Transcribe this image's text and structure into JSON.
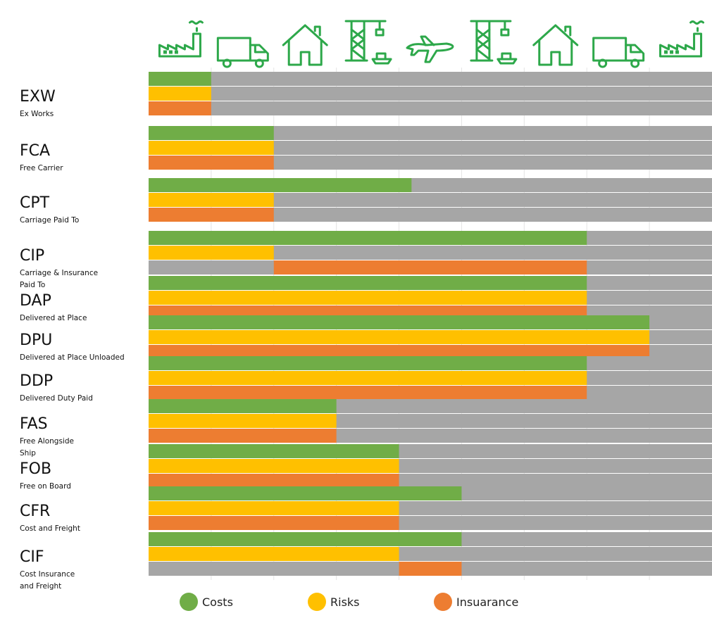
{
  "chart_data": {
    "type": "bar",
    "orientation": "horizontal",
    "stages": [
      "factory-icon",
      "truck-icon",
      "house-icon",
      "port-crane-icon",
      "airplane-icon",
      "port-crane-icon",
      "house-icon",
      "truck-icon",
      "factory-icon"
    ],
    "xlim": [
      0,
      9
    ],
    "categories": [
      {
        "code": "EXW",
        "name": "Ex Works"
      },
      {
        "code": "FCA",
        "name": "Free Carrier"
      },
      {
        "code": "CPT",
        "name": "Carriage Paid To"
      },
      {
        "code": "CIP",
        "name": "Carriage & Insurance Paid To",
        "name_lines": [
          "Carriage & Insurance",
          "Paid To"
        ]
      },
      {
        "code": "DAP",
        "name": "Delivered at Place"
      },
      {
        "code": "DPU",
        "name": "Delivered at Place Unloaded"
      },
      {
        "code": "DDP",
        "name": "Delivered Duty Paid"
      },
      {
        "code": "FAS",
        "name": "Free Alongside Ship",
        "name_lines": [
          "Free Alongside",
          "Ship"
        ]
      },
      {
        "code": "FOB",
        "name": "Free on Board"
      },
      {
        "code": "CFR",
        "name": "Cost and Freight"
      },
      {
        "code": "CIF",
        "name": "Cost Insurance and Freight",
        "name_lines": [
          "Cost Insurance",
          "and Freight"
        ]
      }
    ],
    "series": [
      {
        "name": "Costs",
        "color": "#70ad47",
        "ranges": [
          [
            0,
            1
          ],
          [
            0,
            2
          ],
          [
            0,
            4.2
          ],
          [
            0,
            7
          ],
          [
            0,
            7
          ],
          [
            0,
            8
          ],
          [
            0,
            7
          ],
          [
            0,
            3
          ],
          [
            0,
            4
          ],
          [
            0,
            5
          ],
          [
            0,
            5
          ]
        ]
      },
      {
        "name": "Risks",
        "color": "#ffc000",
        "ranges": [
          [
            0,
            1
          ],
          [
            0,
            2
          ],
          [
            0,
            2
          ],
          [
            0,
            2
          ],
          [
            0,
            7
          ],
          [
            0,
            8
          ],
          [
            0,
            7
          ],
          [
            0,
            3
          ],
          [
            0,
            4
          ],
          [
            0,
            4
          ],
          [
            0,
            4
          ]
        ]
      },
      {
        "name": "Insuarance",
        "color": "#ed7d31",
        "ranges": [
          [
            0,
            1
          ],
          [
            0,
            2
          ],
          [
            0,
            2
          ],
          [
            2,
            7
          ],
          [
            0,
            7
          ],
          [
            0,
            8
          ],
          [
            0,
            7
          ],
          [
            0,
            3
          ],
          [
            0,
            4
          ],
          [
            0,
            4
          ],
          [
            4,
            5
          ]
        ]
      }
    ],
    "remainder_color": "#a6a6a6",
    "icon_color": "#2da84a",
    "legend": {
      "position": "bottom"
    }
  }
}
